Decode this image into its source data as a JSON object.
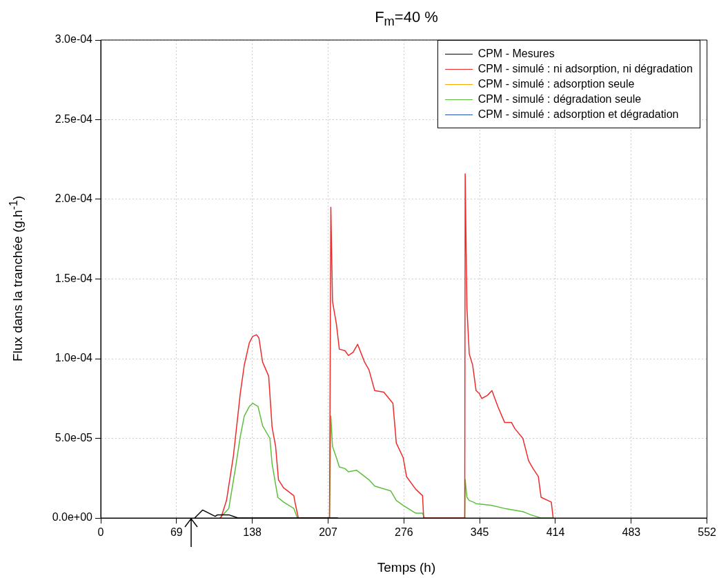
{
  "chart_data": {
    "type": "line",
    "title": "F$_{m}$=40 %",
    "xlabel": "Temps (h)",
    "ylabel": "Flux dans la tranchée (g.h$^{-1}$)",
    "xlim": [
      0,
      552
    ],
    "xticks": [
      0,
      69,
      138,
      207,
      276,
      345,
      414,
      483,
      552
    ],
    "ylim": [
      0,
      0.0003
    ],
    "yticks": [
      {
        "value": 0,
        "label": "0.0e+00"
      },
      {
        "value": 5e-05,
        "label": "5.0e-05"
      },
      {
        "value": 0.0001,
        "label": "1.0e-04"
      },
      {
        "value": 0.00015,
        "label": "1.5e-04"
      },
      {
        "value": 0.0002,
        "label": "2.0e-04"
      },
      {
        "value": 0.00025,
        "label": "2.5e-04"
      },
      {
        "value": 0.0003,
        "label": "3.0e-04"
      }
    ],
    "grid": true,
    "legend": "top right",
    "marker": "none",
    "line_style": "solid",
    "series": [
      {
        "name": "CPM - Mesures",
        "color": "#000000",
        "x": [
          85.5,
          92.7,
          104.2,
          106.3,
          116.6,
          125,
          130,
          216
        ],
        "values": [
          0,
          5e-06,
          1e-06,
          2e-06,
          2e-06,
          0,
          0,
          0
        ]
      },
      {
        "name": "CPM - simulé : ni adsorption, ni dégradation",
        "color": "#ee2a2a",
        "x": [
          109.4,
          114.5,
          120.8,
          127,
          130.7,
          135.3,
          138.4,
          141.9,
          144,
          147.3,
          152.9,
          156,
          159.2,
          161.8,
          166.4,
          175.8,
          176.8,
          179.9,
          208.3,
          209.5,
          211,
          214.5,
          217.2,
          222.4,
          225.5,
          229.7,
          233.9,
          240.1,
          244.2,
          249.4,
          257.7,
          266,
          269.1,
          275.3,
          278.4,
          286.8,
          293,
          294,
          331.4,
          331.8,
          333.4,
          335.5,
          338.6,
          341.7,
          344.8,
          346.9,
          352.1,
          356.2,
          361.5,
          367.7,
          373.9,
          377.1,
          384.3,
          389.5,
          393.6,
          398.4,
          400.9,
          410.2,
          411.9
        ],
        "values": [
          0,
          1.1e-05,
          3.9e-05,
          7.8e-05,
          9.6e-05,
          0.00011,
          0.000114,
          0.000115,
          0.000113,
          9.8e-05,
          8.9e-05,
          5.7e-05,
          4.5e-05,
          2.4e-05,
          1.9e-05,
          1.4e-05,
          1e-05,
          0,
          0,
          0.000195,
          0.000136,
          0.000122,
          0.000106,
          0.000105,
          0.000102,
          0.000104,
          0.000109,
          9.8e-05,
          9.3e-05,
          8e-05,
          7.9e-05,
          7.2e-05,
          4.7e-05,
          3.8e-05,
          2.6e-05,
          1.8e-05,
          1.4e-05,
          0,
          0,
          0.000216,
          0.000132,
          0.000103,
          9.6e-05,
          8e-05,
          7.8e-05,
          7.5e-05,
          7.7e-05,
          8e-05,
          7e-05,
          6e-05,
          6e-05,
          5.6e-05,
          5e-05,
          3.6e-05,
          3.1e-05,
          2.6e-05,
          1.3e-05,
          1e-05,
          0
        ]
      },
      {
        "name": "CPM - simulé : adsorption seule",
        "color": "#ffa500"
      },
      {
        "name": "CPM - simulé : dégradation seule",
        "color": "#5cbf3a",
        "x": [
          108.4,
          116.6,
          122.8,
          127,
          130.7,
          135.3,
          138.4,
          143.2,
          147.3,
          154,
          156,
          161.2,
          166.4,
          175.8,
          179,
          208.3,
          209.5,
          211,
          214.5,
          217.2,
          222.4,
          225.5,
          232.8,
          244.2,
          249.4,
          264,
          269.1,
          275.3,
          286.8,
          293,
          294.6,
          331.4,
          331.8,
          333.4,
          335.5,
          339.2,
          341.7,
          355.2,
          367.7,
          384.3,
          391.5,
          400.9,
          411.3
        ],
        "values": [
          0,
          6e-06,
          3.2e-05,
          5.1e-05,
          6.4e-05,
          7e-05,
          7.2e-05,
          7e-05,
          5.8e-05,
          5e-05,
          3.4e-05,
          1.3e-05,
          1e-05,
          6e-06,
          0,
          0,
          6.4e-05,
          4.5e-05,
          3.8e-05,
          3.2e-05,
          3.1e-05,
          2.9e-05,
          3e-05,
          2.4e-05,
          2e-05,
          1.7e-05,
          1.1e-05,
          8e-06,
          3e-06,
          3e-06,
          0,
          0,
          2.4e-05,
          1.3e-05,
          1.1e-05,
          1e-05,
          9e-06,
          8e-06,
          6e-06,
          4e-06,
          2e-06,
          0,
          0
        ]
      },
      {
        "name": "CPM - simulé : adsorption et dégradation",
        "color": "#1f4fb4"
      }
    ]
  }
}
